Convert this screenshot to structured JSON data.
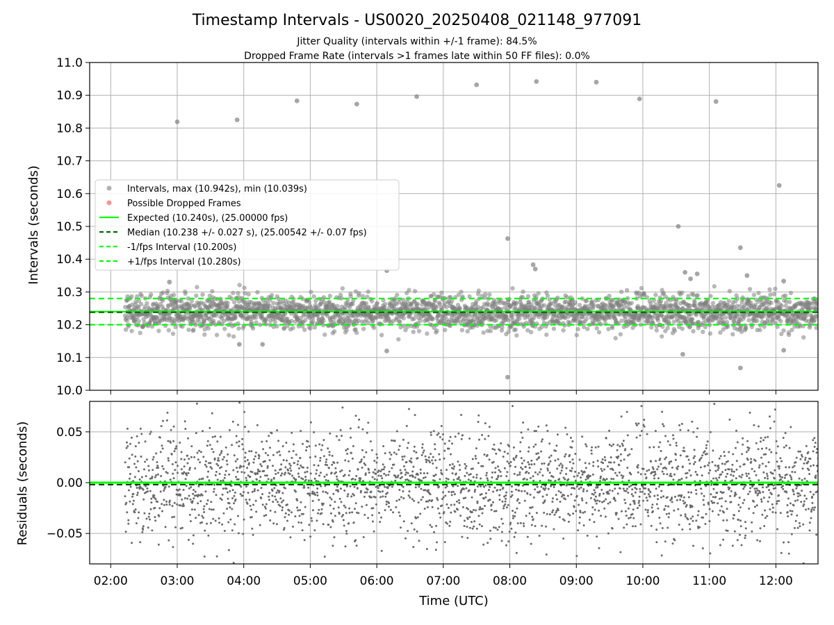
{
  "colors": {
    "point": "#808080",
    "dropped": "#ff4d4d",
    "expected": "#00ff00",
    "median": "#006400",
    "limit": "#00ff00",
    "grid": "#b0b0b0"
  },
  "chart_data": [
    {
      "type": "scatter",
      "title": "Timestamp Intervals - US0020_20250408_021148_977091",
      "subtitle_lines": [
        "Jitter Quality (intervals within +/-1 frame): 84.5%",
        "Dropped Frame Rate (intervals >1 frames late within 50 FF files): 0.0%"
      ],
      "ylabel": "Intervals (seconds)",
      "xlim": [
        "01:41",
        "12:38"
      ],
      "ylim": [
        10.0,
        11.0
      ],
      "yticks": [
        "10.0",
        "10.1",
        "10.2",
        "10.3",
        "10.4",
        "10.5",
        "10.6",
        "10.7",
        "10.8",
        "10.9",
        "11.0"
      ],
      "grid": true,
      "legend_position": "center-left",
      "legend": [
        {
          "label": "Intervals, max (10.942s), min (10.039s)",
          "marker": "point",
          "color": "#808080"
        },
        {
          "label": "Possible Dropped Frames",
          "marker": "point",
          "color": "#ff4d4d"
        },
        {
          "label": "Expected (10.240s), (25.00000 fps)",
          "marker": "solid",
          "color": "#00ff00"
        },
        {
          "label": "Median (10.238 +/- 0.027 s), (25.00542 +/- 0.07 fps)",
          "marker": "dashed",
          "color": "#006400"
        },
        {
          "label": "-1/fps Interval (10.200s)",
          "marker": "dashed",
          "color": "#00ff00"
        },
        {
          "label": "+1/fps Interval (10.280s)",
          "marker": "dashed",
          "color": "#00ff00"
        }
      ],
      "reference_lines": [
        {
          "name": "expected",
          "y": 10.24
        },
        {
          "name": "median",
          "y": 10.238
        },
        {
          "name": "minus-1-fps",
          "y": 10.2
        },
        {
          "name": "plus-1-fps",
          "y": 10.28
        }
      ],
      "band": {
        "x_start": "02:13",
        "x_end": "12:38",
        "center": 10.238,
        "spread": 0.027
      },
      "outliers": [
        {
          "x": "03:00",
          "y": 10.819
        },
        {
          "x": "03:54",
          "y": 10.825
        },
        {
          "x": "04:48",
          "y": 10.883
        },
        {
          "x": "05:42",
          "y": 10.873
        },
        {
          "x": "06:36",
          "y": 10.896
        },
        {
          "x": "07:30",
          "y": 10.932
        },
        {
          "x": "08:24",
          "y": 10.942
        },
        {
          "x": "09:18",
          "y": 10.94
        },
        {
          "x": "09:57",
          "y": 10.889
        },
        {
          "x": "11:06",
          "y": 10.881
        },
        {
          "x": "12:03",
          "y": 10.625
        },
        {
          "x": "10:32",
          "y": 10.5
        },
        {
          "x": "07:58",
          "y": 10.463
        },
        {
          "x": "11:28",
          "y": 10.435
        },
        {
          "x": "08:21",
          "y": 10.383
        },
        {
          "x": "08:23",
          "y": 10.37
        },
        {
          "x": "06:09",
          "y": 10.365
        },
        {
          "x": "10:38",
          "y": 10.36
        },
        {
          "x": "11:34",
          "y": 10.35
        },
        {
          "x": "10:49",
          "y": 10.355
        },
        {
          "x": "10:43",
          "y": 10.34
        },
        {
          "x": "12:07",
          "y": 10.333
        },
        {
          "x": "02:53",
          "y": 10.33
        },
        {
          "x": "04:17",
          "y": 10.14
        },
        {
          "x": "06:09",
          "y": 10.12
        },
        {
          "x": "07:58",
          "y": 10.04
        },
        {
          "x": "10:36",
          "y": 10.11
        },
        {
          "x": "11:28",
          "y": 10.068
        },
        {
          "x": "12:07",
          "y": 10.122
        },
        {
          "x": "03:56",
          "y": 10.14
        }
      ]
    },
    {
      "type": "scatter",
      "ylabel": "Residuals (seconds)",
      "xlabel": "Time (UTC)",
      "xlim": [
        "01:41",
        "12:38"
      ],
      "ylim": [
        -0.08,
        0.08
      ],
      "yticks": [
        "0.05",
        "0.00",
        "−0.05"
      ],
      "xticks": [
        "02:00",
        "03:00",
        "04:00",
        "05:00",
        "06:00",
        "07:00",
        "08:00",
        "09:00",
        "10:00",
        "11:00",
        "12:00"
      ],
      "grid": true,
      "reference_lines": [
        {
          "name": "zero",
          "y": 0.0
        },
        {
          "name": "median-offset",
          "y": -0.002
        }
      ],
      "band": {
        "x_start": "02:13",
        "x_end": "12:38",
        "center": 0.0,
        "spread": 0.027
      }
    }
  ]
}
